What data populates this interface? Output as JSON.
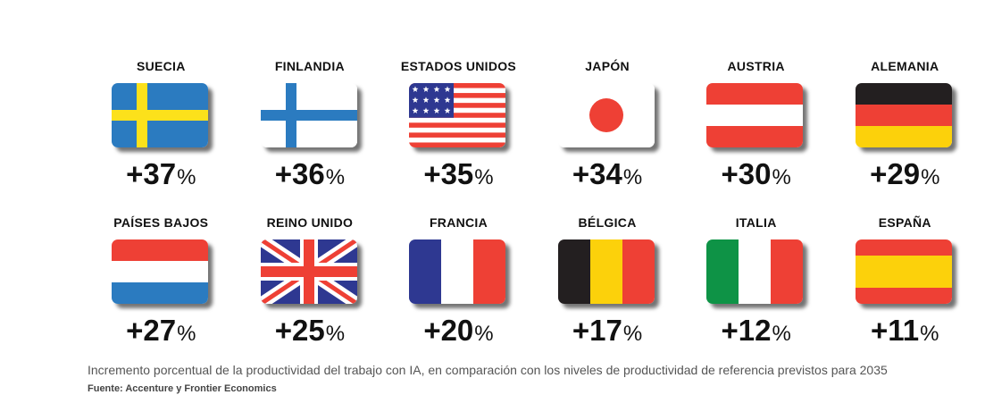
{
  "chart_data": {
    "type": "table",
    "unit": "%",
    "categories": [
      "SUECIA",
      "FINLANDIA",
      "ESTADOS UNIDOS",
      "JAPÓN",
      "AUSTRIA",
      "ALEMANIA",
      "PAÍSES BAJOS",
      "REINO UNIDO",
      "FRANCIA",
      "BÉLGICA",
      "ITALIA",
      "ESPAÑA"
    ],
    "values": [
      37,
      36,
      35,
      34,
      30,
      29,
      27,
      25,
      20,
      17,
      12,
      11
    ],
    "flags": [
      "sweden",
      "finland",
      "usa",
      "japan",
      "austria",
      "germany",
      "netherlands",
      "uk",
      "france",
      "belgium",
      "italy",
      "spain"
    ],
    "value_labels": [
      "+37",
      "+36",
      "+35",
      "+34",
      "+30",
      "+29",
      "+27",
      "+25",
      "+20",
      "+17",
      "+12",
      "+11"
    ]
  },
  "colors": {
    "red": "#ee4035",
    "blue": "#2b7bc0",
    "yellow": "#fce11b",
    "navy": "#2e3891",
    "black": "#231f20",
    "gold": "#fcd10b",
    "green": "#0e9346",
    "white": "#ffffff"
  },
  "footnote": "Incremento porcentual de la productividad del trabajo con IA, en comparación con los niveles de productividad de referencia previstos para 2035",
  "source": "Fuente: Accenture y Frontier Economics"
}
